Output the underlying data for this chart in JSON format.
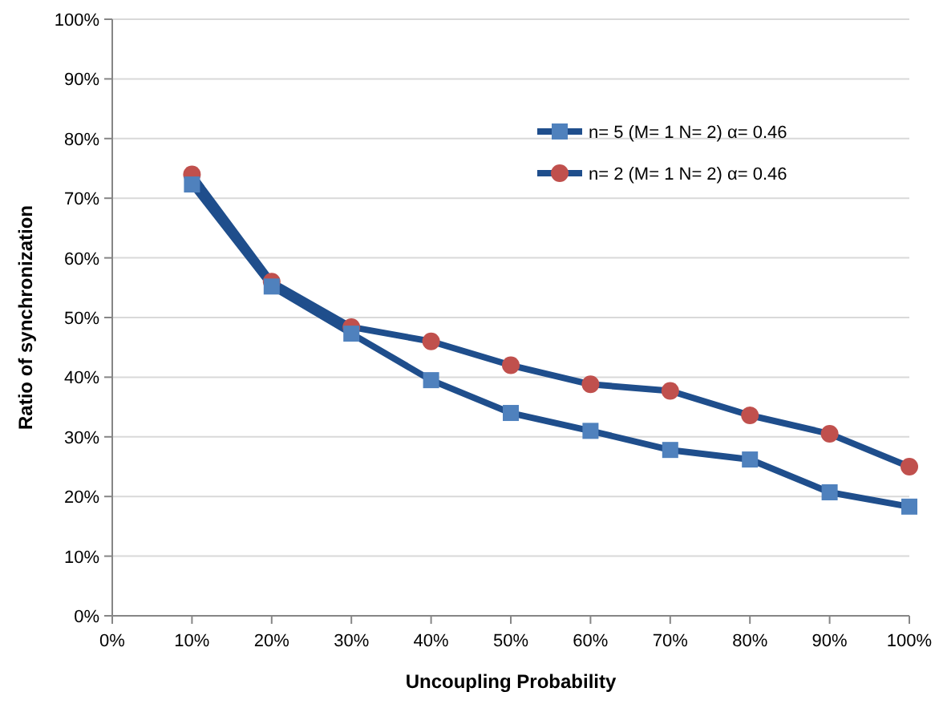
{
  "chart_data": {
    "type": "line",
    "xlabel": "Uncoupling Probability",
    "ylabel": "Ratio of synchronization",
    "x": [
      10,
      20,
      30,
      40,
      50,
      60,
      70,
      80,
      90,
      100
    ],
    "series": [
      {
        "name": "n= 5 (M= 1 N= 2) α= 0.46",
        "color": "#4f81bd",
        "marker": "square",
        "values": [
          72.3,
          55.2,
          47.3,
          39.5,
          34,
          31,
          27.8,
          26.2,
          20.7,
          18.3
        ]
      },
      {
        "name": "n= 2 (M= 1 N= 2) α= 0.46",
        "color": "#c0504d",
        "marker": "circle",
        "values": [
          74,
          56,
          48.4,
          46,
          42,
          38.8,
          37.7,
          33.6,
          30.5,
          25
        ]
      }
    ],
    "xlim": [
      0,
      100
    ],
    "xticks": [
      {
        "value": 0,
        "label": "0%"
      },
      {
        "value": 10,
        "label": "10%"
      },
      {
        "value": 20,
        "label": "20%"
      },
      {
        "value": 30,
        "label": "30%"
      },
      {
        "value": 40,
        "label": "40%"
      },
      {
        "value": 50,
        "label": "50%"
      },
      {
        "value": 60,
        "label": "60%"
      },
      {
        "value": 70,
        "label": "70%"
      },
      {
        "value": 80,
        "label": "80%"
      },
      {
        "value": 90,
        "label": "90%"
      },
      {
        "value": 100,
        "label": "100%"
      }
    ],
    "ylim": [
      0,
      100
    ],
    "yticks": [
      {
        "value": 0,
        "label": "0%"
      },
      {
        "value": 10,
        "label": "10%"
      },
      {
        "value": 20,
        "label": "20%"
      },
      {
        "value": 30,
        "label": "30%"
      },
      {
        "value": 40,
        "label": "40%"
      },
      {
        "value": 50,
        "label": "50%"
      },
      {
        "value": 60,
        "label": "60%"
      },
      {
        "value": 70,
        "label": "70%"
      },
      {
        "value": 80,
        "label": "80%"
      },
      {
        "value": 90,
        "label": "90%"
      },
      {
        "value": 100,
        "label": "100%"
      }
    ],
    "grid": "y",
    "legend": "top right"
  }
}
